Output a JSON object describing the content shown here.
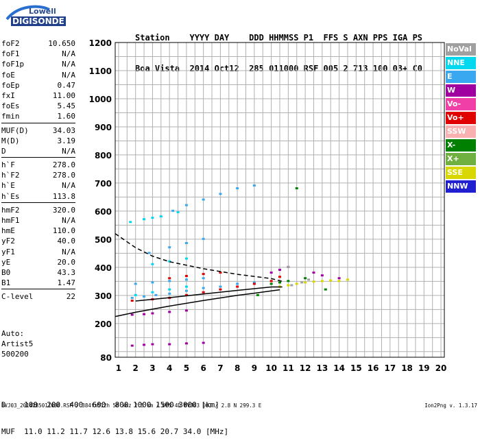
{
  "logo": {
    "line1": "Lowell",
    "line2": "DIGISONDE"
  },
  "header": {
    "row1": "Station    YYYY DAY    DDD HHMMSS P1  FFS S AXN PPS IGA PS",
    "row2": "Boa Vista  2014 Oct12  285 011000 RSF 005 2 713 100 03+ C0"
  },
  "params": [
    {
      "label": "foF2",
      "value": "10.650"
    },
    {
      "label": "foF1",
      "value": "N/A"
    },
    {
      "label": "foF1p",
      "value": "N/A"
    },
    {
      "label": "foE",
      "value": "N/A"
    },
    {
      "label": "foEp",
      "value": "0.47"
    },
    {
      "label": "fxI",
      "value": "11.00"
    },
    {
      "label": "foEs",
      "value": "5.45"
    },
    {
      "label": "fmin",
      "value": "1.60"
    },
    {
      "label": "MUF(D)",
      "value": "34.03"
    },
    {
      "label": "M(D)",
      "value": "3.19"
    },
    {
      "label": "D",
      "value": "N/A"
    },
    {
      "label": "h`F",
      "value": "278.0"
    },
    {
      "label": "h`F2",
      "value": "278.0"
    },
    {
      "label": "h`E",
      "value": "N/A"
    },
    {
      "label": "h`Es",
      "value": "113.8"
    },
    {
      "label": "hmF2",
      "value": "320.0"
    },
    {
      "label": "hmF1",
      "value": "N/A"
    },
    {
      "label": "hmE",
      "value": "110.0"
    },
    {
      "label": "yF2",
      "value": "40.0"
    },
    {
      "label": "yF1",
      "value": "N/A"
    },
    {
      "label": "yE",
      "value": "20.0"
    },
    {
      "label": "B0",
      "value": "43.3"
    },
    {
      "label": "B1",
      "value": "1.47"
    },
    {
      "label": "C-level",
      "value": "22"
    }
  ],
  "auto": {
    "line1": "Auto:",
    "line2": "Artist5",
    "line3": "500200"
  },
  "legend": [
    {
      "label": "NoVal",
      "color": "#a0a0a0"
    },
    {
      "label": "NNE",
      "color": "#00d8f0"
    },
    {
      "label": "E",
      "color": "#3aa8f0"
    },
    {
      "label": "W",
      "color": "#a000a0"
    },
    {
      "label": "Vo-",
      "color": "#f040a8"
    },
    {
      "label": "Vo+",
      "color": "#e00000"
    },
    {
      "label": "SSW",
      "color": "#f8b0b0"
    },
    {
      "label": "X-",
      "color": "#008000"
    },
    {
      "label": "X+",
      "color": "#70b040"
    },
    {
      "label": "SSE",
      "color": "#d8d800"
    },
    {
      "label": "NNW",
      "color": "#2020d0"
    }
  ],
  "muf_table": {
    "row1": "D    100  200  400  600  800 1000 1500 3000 [km]",
    "row2": "MUF  11.0 11.2 11.7 12.6 13.8 15.6 20.7 34.0 [MHz]"
  },
  "footer": "BVJ03_2014285011000.RSF / 384fx512h 50 kHz 2.5 km / DPS-4D BVJ03 003 / 2.8 N 299.3 E",
  "version": "Ion2Png v. 1.3.17",
  "chart_data": {
    "type": "scatter",
    "xlim": [
      0.8,
      20.2
    ],
    "ylim": [
      80,
      1200
    ],
    "x_ticks": [
      1,
      2,
      3,
      4,
      5,
      6,
      7,
      8,
      9,
      10,
      11,
      12,
      13,
      14,
      15,
      16,
      17,
      18,
      19,
      20
    ],
    "y_ticks": [
      80,
      200,
      300,
      400,
      500,
      600,
      700,
      800,
      900,
      1000,
      1100,
      1200
    ],
    "grid": true,
    "series": [
      {
        "name": "E",
        "color": "#3aa8f0",
        "points": [
          [
            1.8,
            290
          ],
          [
            2.5,
            295
          ],
          [
            3.2,
            300
          ],
          [
            4,
            305
          ],
          [
            5,
            315
          ],
          [
            6,
            325
          ],
          [
            7,
            330
          ],
          [
            8,
            340
          ],
          [
            9,
            345
          ],
          [
            2,
            340
          ],
          [
            3,
            345
          ],
          [
            4,
            350
          ],
          [
            5,
            355
          ],
          [
            6,
            360
          ],
          [
            2.8,
            450
          ],
          [
            4,
            470
          ],
          [
            5,
            485
          ],
          [
            6,
            500
          ],
          [
            4.2,
            600
          ],
          [
            5,
            620
          ],
          [
            6,
            640
          ],
          [
            7,
            660
          ],
          [
            8,
            680
          ],
          [
            9,
            690
          ]
        ]
      },
      {
        "name": "NNE",
        "color": "#00d8f0",
        "points": [
          [
            1.7,
            560
          ],
          [
            2.5,
            570
          ],
          [
            3,
            575
          ],
          [
            3.5,
            580
          ],
          [
            4.5,
            595
          ],
          [
            2,
            300
          ],
          [
            3,
            310
          ],
          [
            4,
            320
          ],
          [
            5,
            330
          ],
          [
            3,
            410
          ],
          [
            4,
            420
          ],
          [
            5,
            430
          ]
        ]
      },
      {
        "name": "W",
        "color": "#a000a0",
        "points": [
          [
            1.8,
            230
          ],
          [
            2.5,
            232
          ],
          [
            3,
            235
          ],
          [
            4,
            240
          ],
          [
            5,
            245
          ],
          [
            1.8,
            120
          ],
          [
            2.5,
            123
          ],
          [
            3,
            125
          ],
          [
            4,
            125
          ],
          [
            5,
            128
          ],
          [
            6,
            130
          ],
          [
            10,
            380
          ],
          [
            10.5,
            390
          ],
          [
            11,
            400
          ],
          [
            12.5,
            380
          ],
          [
            13,
            370
          ],
          [
            14,
            360
          ]
        ]
      },
      {
        "name": "Vo+",
        "color": "#e00000",
        "points": [
          [
            1.8,
            280
          ],
          [
            3,
            285
          ],
          [
            4,
            290
          ],
          [
            5,
            300
          ],
          [
            6,
            310
          ],
          [
            7,
            320
          ],
          [
            8,
            330
          ],
          [
            9,
            340
          ],
          [
            10,
            350
          ],
          [
            10.5,
            365
          ],
          [
            4,
            360
          ],
          [
            5,
            368
          ],
          [
            6,
            375
          ],
          [
            7,
            380
          ]
        ]
      },
      {
        "name": "SSE",
        "color": "#d8d800",
        "points": [
          [
            10.5,
            330
          ],
          [
            11,
            335
          ],
          [
            11.5,
            340
          ],
          [
            12,
            345
          ],
          [
            12.5,
            348
          ],
          [
            13,
            350
          ],
          [
            13.5,
            352
          ],
          [
            14,
            350
          ],
          [
            14.5,
            355
          ]
        ]
      },
      {
        "name": "X-",
        "color": "#008000",
        "points": [
          [
            10,
            340
          ],
          [
            10.5,
            345
          ],
          [
            11,
            350
          ],
          [
            12,
            360
          ],
          [
            13.2,
            320
          ],
          [
            9.2,
            300
          ],
          [
            11.5,
            680
          ]
        ]
      },
      {
        "name": "NoVal",
        "color": "#a0a0a0",
        "points": [
          [
            11.2,
            335
          ],
          [
            11.8,
            345
          ],
          [
            12.2,
            355
          ],
          [
            11,
            400
          ]
        ]
      }
    ],
    "profile_solid": [
      [
        0.8,
        225
      ],
      [
        2,
        240
      ],
      [
        4,
        262
      ],
      [
        6,
        282
      ],
      [
        8,
        300
      ],
      [
        9,
        308
      ],
      [
        10,
        316
      ],
      [
        10.5,
        320
      ]
    ],
    "profile_solid2": [
      [
        2,
        280
      ],
      [
        4,
        292
      ],
      [
        6,
        305
      ],
      [
        8,
        318
      ],
      [
        10,
        330
      ],
      [
        10.65,
        330
      ]
    ],
    "profile_dashed": [
      [
        0.8,
        520
      ],
      [
        2,
        470
      ],
      [
        3,
        440
      ],
      [
        4,
        420
      ],
      [
        6,
        395
      ],
      [
        8,
        375
      ],
      [
        10,
        360
      ],
      [
        10.65,
        350
      ]
    ]
  }
}
